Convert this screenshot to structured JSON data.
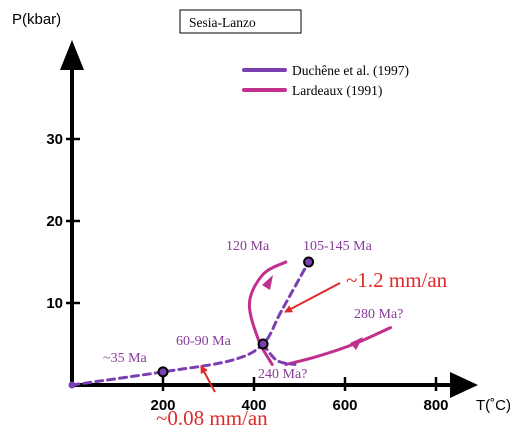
{
  "chart_data": {
    "type": "line",
    "title": "Sesia-Lanzo",
    "xlabel": "T(˚C)",
    "ylabel": "P(kbar)",
    "xlim": [
      0,
      900
    ],
    "ylim": [
      0,
      40
    ],
    "x_ticks": [
      {
        "value": 200,
        "label": "200"
      },
      {
        "value": 400,
        "label": "400"
      },
      {
        "value": 600,
        "label": "600"
      },
      {
        "value": 800,
        "label": "800"
      }
    ],
    "y_ticks": [
      {
        "value": 10,
        "label": "10"
      },
      {
        "value": 20,
        "label": "20"
      },
      {
        "value": 30,
        "label": "30"
      }
    ],
    "legend": {
      "position": "top-right",
      "entries": [
        {
          "label": "Duchêne et al. (1997)",
          "color": "#7a3fb0"
        },
        {
          "label": "Lardeaux (1991)",
          "color": "#c1308c"
        }
      ]
    },
    "series": [
      {
        "name": "Duchêne et al. (1997)",
        "color": "#7a3fb0",
        "style": "dashed",
        "points": [
          [
            0,
            0
          ],
          [
            200,
            1.6
          ],
          [
            350,
            3.0
          ],
          [
            420,
            5.0
          ],
          [
            460,
            9.0
          ],
          [
            520,
            15.0
          ]
        ]
      },
      {
        "name": "Lardeaux (1991)",
        "color": "#c1308c",
        "style": "solid",
        "segments": [
          [
            [
              440,
              2.5
            ],
            [
              410,
              5.5
            ],
            [
              390,
              10.0
            ],
            [
              420,
              13.5
            ],
            [
              470,
              15.0
            ]
          ],
          [
            [
              470,
              2.5
            ],
            [
              540,
              3.5
            ],
            [
              620,
              5.0
            ],
            [
              700,
              7.0
            ]
          ]
        ]
      },
      {
        "name": "",
        "color": "#7a3fb0",
        "style": "dashed",
        "points": [
          [
            420,
            5.0
          ],
          [
            450,
            3.0
          ],
          [
            490,
            2.5
          ]
        ]
      }
    ],
    "markers": [
      {
        "x": 200,
        "y": 1.6
      },
      {
        "x": 420,
        "y": 5.0
      },
      {
        "x": 520,
        "y": 15.0
      }
    ],
    "annotations": [
      {
        "text": "~35 Ma",
        "kind": "age"
      },
      {
        "text": "60-90 Ma",
        "kind": "age"
      },
      {
        "text": "120 Ma",
        "kind": "age"
      },
      {
        "text": "105-145 Ma",
        "kind": "age"
      },
      {
        "text": "280 Ma?",
        "kind": "age"
      },
      {
        "text": "240 Ma?",
        "kind": "age"
      },
      {
        "text": "~1.2 mm/an",
        "kind": "rate"
      },
      {
        "text": "~0.08 mm/an",
        "kind": "rate"
      }
    ]
  }
}
